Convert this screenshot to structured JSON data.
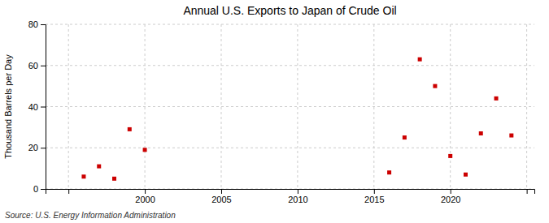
{
  "chart_data": {
    "type": "scatter",
    "title": "Annual U.S. Exports to Japan of Crude Oil",
    "ylabel": "Thousand Barrels per Day",
    "source": "Source: U.S. Energy Information Administration",
    "x": [
      1996,
      1997,
      1998,
      1999,
      2000,
      2016,
      2017,
      2018,
      2019,
      2020,
      2021,
      2022,
      2023,
      2024
    ],
    "values": [
      6,
      11,
      5,
      29,
      19,
      8,
      25,
      63,
      50,
      16,
      7,
      27,
      44,
      26
    ],
    "color": "#cc0000",
    "marker": "square",
    "xlim": [
      1993.5,
      2025.5
    ],
    "xticks": [
      {
        "value": 1995,
        "label": null
      },
      2000,
      2005,
      2010,
      2015,
      2020,
      {
        "value": 2025,
        "label": null
      }
    ],
    "ylim": [
      0,
      80
    ],
    "yticks": [
      0,
      20,
      40,
      60,
      80
    ],
    "grid": true
  }
}
